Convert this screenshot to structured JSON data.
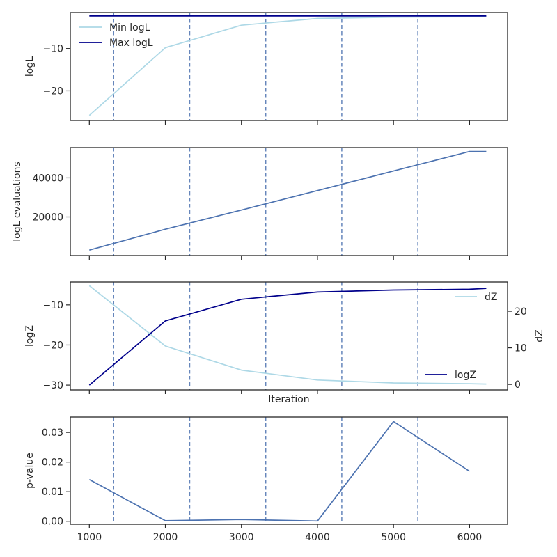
{
  "colors": {
    "light_line": "#add8e6",
    "dark_line": "#00008b",
    "mid_line": "#4c72b0",
    "dashed_line": "#4c72b0",
    "axes": "#262626"
  },
  "chart_data": [
    {
      "id": "logl",
      "type": "line",
      "xlabel": "",
      "ylabel": "logL",
      "xlim": [
        750,
        6500
      ],
      "ylim": [
        -27,
        -1.5
      ],
      "x_ticks": [
        1000,
        2000,
        3000,
        4000,
        5000,
        6000
      ],
      "x_tick_labels_visible": false,
      "y_ticks": [
        -10,
        -20
      ],
      "y_tick_labels": [
        "−10",
        "−20"
      ],
      "vlines": [
        1320,
        2320,
        3320,
        4320,
        5320
      ],
      "legend": "top-left",
      "series": [
        {
          "name": "Min logL",
          "color": "#add8e6",
          "x": [
            1000,
            2000,
            3000,
            4000,
            5000,
            6000,
            6220
          ],
          "y": [
            -25.8,
            -9.8,
            -4.5,
            -2.9,
            -2.6,
            -2.5,
            -2.5
          ]
        },
        {
          "name": "Max logL",
          "color": "#00008b",
          "x": [
            1000,
            2000,
            3000,
            4000,
            5000,
            6000,
            6220
          ],
          "y": [
            -2.3,
            -2.3,
            -2.3,
            -2.3,
            -2.3,
            -2.3,
            -2.3
          ]
        }
      ]
    },
    {
      "id": "evals",
      "type": "line",
      "xlabel": "",
      "ylabel": "logL evaluations",
      "xlim": [
        750,
        6500
      ],
      "ylim": [
        200,
        55500
      ],
      "x_ticks": [
        1000,
        2000,
        3000,
        4000,
        5000,
        6000
      ],
      "x_tick_labels_visible": false,
      "y_ticks": [
        40000,
        20000
      ],
      "y_tick_labels": [
        "40000",
        "20000"
      ],
      "vlines": [
        1320,
        2320,
        3320,
        4320,
        5320
      ],
      "series": [
        {
          "name": "",
          "color": "#4c72b0",
          "x": [
            1000,
            2000,
            3000,
            4000,
            5000,
            6000,
            6220
          ],
          "y": [
            3000,
            13700,
            23500,
            33500,
            43500,
            53500,
            53500
          ]
        }
      ]
    },
    {
      "id": "logz",
      "type": "line",
      "xlabel": "Iteration",
      "ylabel": "logZ",
      "y2label": "dZ",
      "xlim": [
        750,
        6500
      ],
      "ylim": [
        -31.2,
        -4.3
      ],
      "y2lim": [
        -1.5,
        28
      ],
      "x_ticks": [
        1000,
        2000,
        3000,
        4000,
        5000,
        6000
      ],
      "x_tick_labels_visible": false,
      "y_ticks": [
        -10,
        -20,
        -30
      ],
      "y_tick_labels": [
        "−10",
        "−20",
        "−30"
      ],
      "y2_ticks": [
        20,
        10,
        0
      ],
      "y2_tick_labels": [
        "20",
        "10",
        "0"
      ],
      "vlines": [
        1320,
        2320,
        3320,
        4320,
        5320
      ],
      "series": [
        {
          "name": "dZ",
          "axis": "right",
          "color": "#add8e6",
          "legend": "top-right",
          "x": [
            1000,
            2000,
            3000,
            4000,
            5000,
            6000,
            6220
          ],
          "y": [
            27,
            10.5,
            3.9,
            1.2,
            0.4,
            0.2,
            0.1
          ]
        },
        {
          "name": "logZ",
          "axis": "left",
          "color": "#00008b",
          "legend": "bottom-right",
          "x": [
            1000,
            2000,
            3000,
            4000,
            5000,
            6000,
            6220
          ],
          "y": [
            -30,
            -14,
            -8.6,
            -6.8,
            -6.3,
            -6.1,
            -5.9
          ]
        }
      ]
    },
    {
      "id": "pvalue",
      "type": "line",
      "xlabel": "",
      "ylabel": "p-value",
      "xlim": [
        750,
        6500
      ],
      "ylim": [
        -0.001,
        0.0352
      ],
      "x_ticks": [
        1000,
        2000,
        3000,
        4000,
        5000,
        6000
      ],
      "x_tick_labels_visible": true,
      "x_tick_labels": [
        "1000",
        "2000",
        "3000",
        "4000",
        "5000",
        "6000"
      ],
      "y_ticks": [
        0.03,
        0.02,
        0.01,
        0.0
      ],
      "y_tick_labels": [
        "0.03",
        "0.02",
        "0.01",
        "0.00"
      ],
      "vlines": [
        1320,
        2320,
        3320,
        4320,
        5320
      ],
      "series": [
        {
          "name": "",
          "color": "#4c72b0",
          "x": [
            1000,
            2000,
            3000,
            4000,
            5000,
            6000
          ],
          "y": [
            0.0141,
            0.0002,
            0.0006,
            0.0001,
            0.0337,
            0.0169
          ]
        }
      ]
    }
  ]
}
